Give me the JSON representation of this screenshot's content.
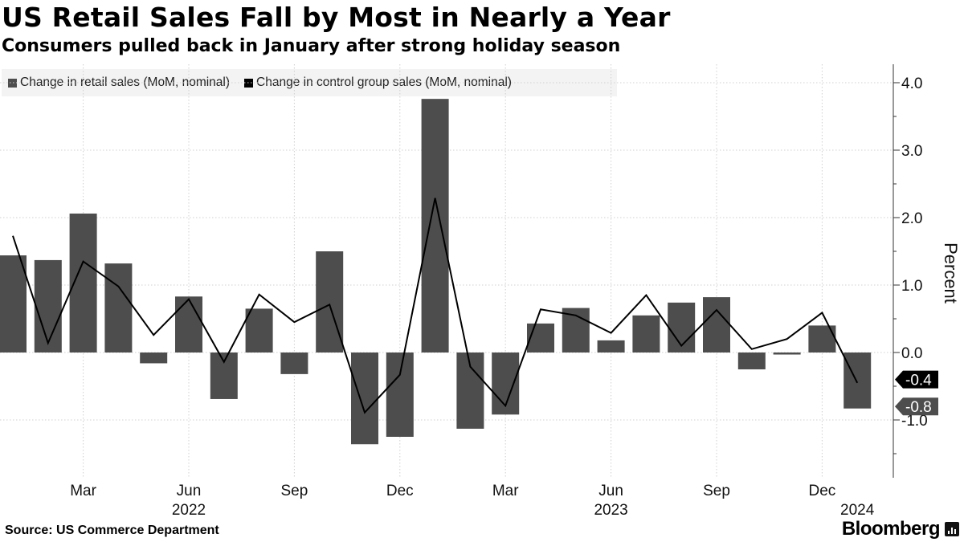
{
  "header": {
    "title": "US Retail Sales Fall by Most in Nearly a Year",
    "subtitle": "Consumers pulled back in January after strong holiday season"
  },
  "legend": {
    "items": [
      {
        "label": "Change in retail sales (MoM, nominal)",
        "color": "#4d4d4d"
      },
      {
        "label": "Change in control group sales (MoM, nominal)",
        "color": "#000000"
      }
    ]
  },
  "footer": {
    "source": "Source: US Commerce Department",
    "brand": "Bloomberg"
  },
  "chart_data": {
    "type": "bar",
    "categories": [
      "2022-01",
      "2022-02",
      "2022-03",
      "2022-04",
      "2022-05",
      "2022-06",
      "2022-07",
      "2022-08",
      "2022-09",
      "2022-10",
      "2022-11",
      "2022-12",
      "2023-01",
      "2023-02",
      "2023-03",
      "2023-04",
      "2023-05",
      "2023-06",
      "2023-07",
      "2023-08",
      "2023-09",
      "2023-10",
      "2023-11",
      "2023-12",
      "2024-01"
    ],
    "series": [
      {
        "name": "Change in retail sales (MoM, nominal)",
        "render": "bar",
        "color": "#4d4d4d",
        "values": [
          1.44,
          1.37,
          2.06,
          1.32,
          -0.16,
          0.83,
          -0.69,
          0.65,
          -0.32,
          1.5,
          -1.36,
          -1.25,
          3.76,
          -1.13,
          -0.92,
          0.43,
          0.66,
          0.18,
          0.55,
          0.74,
          0.82,
          -0.25,
          -0.03,
          0.4,
          -0.83
        ]
      },
      {
        "name": "Change in control group sales (MoM, nominal)",
        "render": "line",
        "color": "#000000",
        "values": [
          1.73,
          0.14,
          1.35,
          0.98,
          0.26,
          0.79,
          -0.14,
          0.86,
          0.45,
          0.71,
          -0.89,
          -0.33,
          2.29,
          -0.21,
          -0.79,
          0.64,
          0.55,
          0.29,
          0.85,
          0.1,
          0.63,
          0.05,
          0.2,
          0.59,
          -0.45
        ]
      }
    ],
    "yticks": [
      "4.0",
      "3.0",
      "2.0",
      "1.0",
      "0.0",
      "-1.0"
    ],
    "ylim": [
      -1.85,
      4.3
    ],
    "ylabel": "Percent",
    "y_axis_position": "right",
    "xticks": [
      {
        "index": 2,
        "label": "Mar"
      },
      {
        "index": 5,
        "label": "Jun"
      },
      {
        "index": 8,
        "label": "Sep"
      },
      {
        "index": 11,
        "label": "Dec"
      },
      {
        "index": 14,
        "label": "Mar"
      },
      {
        "index": 17,
        "label": "Jun"
      },
      {
        "index": 20,
        "label": "Sep"
      },
      {
        "index": 23,
        "label": "Dec"
      }
    ],
    "year_labels": [
      {
        "index": 5,
        "label": "2022"
      },
      {
        "index": 17,
        "label": "2023"
      },
      {
        "index": 24,
        "label": "2024"
      }
    ],
    "end_labels": [
      {
        "value": -0.4,
        "label": "-0.4",
        "color": "#000000"
      },
      {
        "value": -0.8,
        "label": "-0.8",
        "color": "#4d4d4d"
      }
    ],
    "grid": true,
    "legend_position": "top-left"
  }
}
